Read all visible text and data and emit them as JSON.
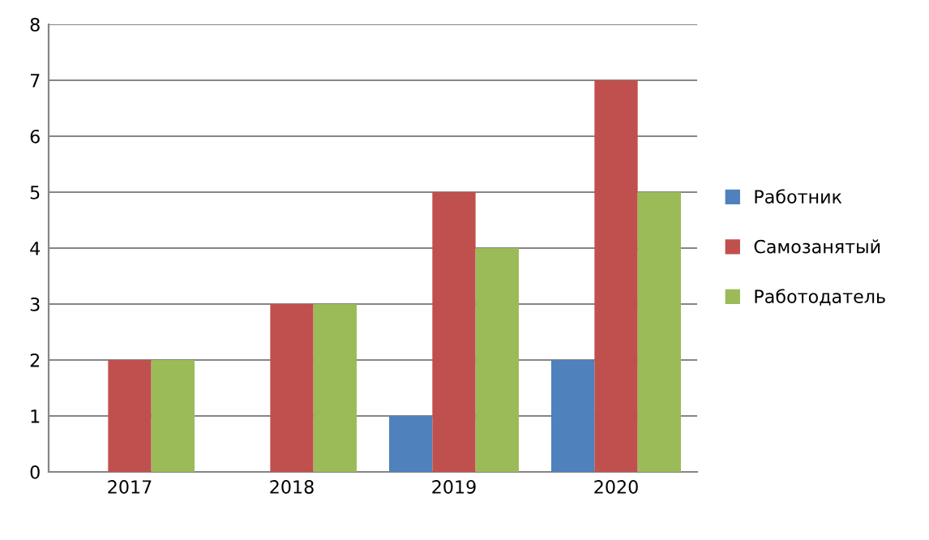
{
  "chart_data": {
    "type": "bar",
    "categories": [
      "2017",
      "2018",
      "2019",
      "2020"
    ],
    "series": [
      {
        "name": "Работник",
        "color": "#4f81bd",
        "values": [
          0,
          0,
          1,
          2
        ]
      },
      {
        "name": "Самозанятый",
        "color": "#c0504d",
        "values": [
          2,
          3,
          5,
          7
        ]
      },
      {
        "name": "Работодатель",
        "color": "#9bbb59",
        "values": [
          2,
          3,
          4,
          5
        ]
      }
    ],
    "ylim": [
      0,
      8
    ],
    "yticks": [
      0,
      1,
      2,
      3,
      4,
      5,
      6,
      7,
      8
    ],
    "grid": "y",
    "legend": "right"
  }
}
